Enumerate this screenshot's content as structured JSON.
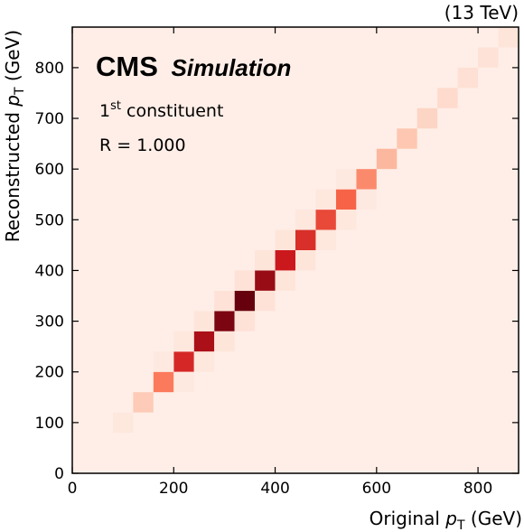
{
  "chart_data": {
    "type": "heatmap",
    "experiment": "CMS",
    "experiment_tag": "Simulation",
    "energy_label": "(13 TeV)",
    "annotation_prefix": "1",
    "annotation_sup": "st",
    "annotation_suffix": " constituent",
    "annotation_line2": "R = 1.000",
    "xlabel_text": "Original ",
    "xlabel_var": "p",
    "xlabel_sub": "T",
    "xlabel_unit": " (GeV)",
    "ylabel_text": "Reconstructed ",
    "ylabel_var": "p",
    "ylabel_sub": "T",
    "ylabel_unit": " (GeV)",
    "xlim": [
      0,
      880
    ],
    "ylim": [
      0,
      880
    ],
    "xticks": [
      0,
      200,
      400,
      600,
      800
    ],
    "xtick_labels": [
      "0",
      "200",
      "400",
      "600",
      "800"
    ],
    "yticks": [
      0,
      100,
      200,
      300,
      400,
      500,
      600,
      700,
      800
    ],
    "ytick_labels": [
      "0",
      "100",
      "200",
      "300",
      "400",
      "500",
      "600",
      "700",
      "800"
    ],
    "bin_width": 40,
    "background_density": 0.03,
    "colormap": [
      "#fff5f0",
      "#fcbba1",
      "#fb6a4a",
      "#cb181d",
      "#67000d"
    ],
    "cells": [
      {
        "x": 80,
        "y": 80,
        "density": 0.06
      },
      {
        "x": 120,
        "y": 120,
        "density": 0.18
      },
      {
        "x": 160,
        "y": 160,
        "density": 0.45
      },
      {
        "x": 200,
        "y": 200,
        "density": 0.7
      },
      {
        "x": 240,
        "y": 240,
        "density": 0.83
      },
      {
        "x": 280,
        "y": 280,
        "density": 0.95
      },
      {
        "x": 320,
        "y": 320,
        "density": 1.0
      },
      {
        "x": 360,
        "y": 360,
        "density": 0.88
      },
      {
        "x": 400,
        "y": 400,
        "density": 0.75
      },
      {
        "x": 440,
        "y": 440,
        "density": 0.68
      },
      {
        "x": 480,
        "y": 480,
        "density": 0.6
      },
      {
        "x": 520,
        "y": 520,
        "density": 0.52
      },
      {
        "x": 560,
        "y": 560,
        "density": 0.4
      },
      {
        "x": 600,
        "y": 600,
        "density": 0.26
      },
      {
        "x": 640,
        "y": 640,
        "density": 0.2
      },
      {
        "x": 680,
        "y": 680,
        "density": 0.14
      },
      {
        "x": 720,
        "y": 720,
        "density": 0.11
      },
      {
        "x": 760,
        "y": 760,
        "density": 0.09
      },
      {
        "x": 800,
        "y": 800,
        "density": 0.08
      },
      {
        "x": 840,
        "y": 840,
        "density": 0.07
      },
      {
        "x": 200,
        "y": 160,
        "density": 0.05
      },
      {
        "x": 160,
        "y": 200,
        "density": 0.05
      },
      {
        "x": 240,
        "y": 200,
        "density": 0.06
      },
      {
        "x": 200,
        "y": 240,
        "density": 0.06
      },
      {
        "x": 280,
        "y": 240,
        "density": 0.07
      },
      {
        "x": 240,
        "y": 280,
        "density": 0.07
      },
      {
        "x": 320,
        "y": 280,
        "density": 0.08
      },
      {
        "x": 280,
        "y": 320,
        "density": 0.08
      },
      {
        "x": 360,
        "y": 320,
        "density": 0.08
      },
      {
        "x": 320,
        "y": 360,
        "density": 0.08
      },
      {
        "x": 400,
        "y": 360,
        "density": 0.07
      },
      {
        "x": 360,
        "y": 400,
        "density": 0.07
      },
      {
        "x": 440,
        "y": 400,
        "density": 0.07
      },
      {
        "x": 400,
        "y": 440,
        "density": 0.07
      },
      {
        "x": 480,
        "y": 440,
        "density": 0.06
      },
      {
        "x": 440,
        "y": 480,
        "density": 0.06
      },
      {
        "x": 520,
        "y": 480,
        "density": 0.06
      },
      {
        "x": 480,
        "y": 520,
        "density": 0.06
      },
      {
        "x": 560,
        "y": 520,
        "density": 0.05
      },
      {
        "x": 520,
        "y": 560,
        "density": 0.05
      }
    ]
  }
}
